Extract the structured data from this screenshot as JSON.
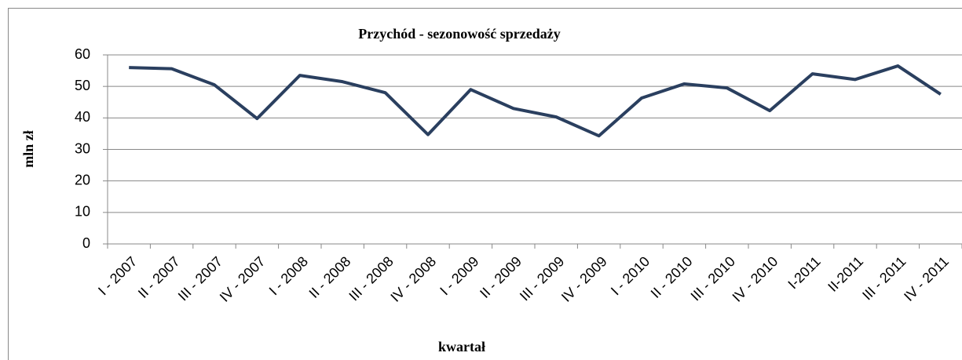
{
  "chart_data": {
    "type": "line",
    "title": "Przychód - sezonowość sprzedaży",
    "x_label": "kwartał",
    "y_label": "mln zł",
    "categories": [
      "I - 2007",
      "II - 2007",
      "III - 2007",
      "IV - 2007",
      "I - 2008",
      "II - 2008",
      "III - 2008",
      "IV - 2008",
      "I - 2009",
      "II - 2009",
      "III - 2009",
      "IV - 2009",
      "I - 2010",
      "II - 2010",
      "III - 2010",
      "IV - 2010",
      "I-2011",
      "II-2011",
      "III - 2011",
      "IV - 2011"
    ],
    "series": [
      {
        "color": "#2a3f5f",
        "values": [
          56,
          55.6,
          50.5,
          39.8,
          53.5,
          51.5,
          48,
          34.7,
          49,
          43,
          40.3,
          34.3,
          46.3,
          50.8,
          49.5,
          42.3,
          54,
          52.2,
          56.5,
          47.5
        ]
      }
    ],
    "ylim": [
      0,
      60
    ],
    "yticks": [
      0,
      10,
      20,
      30,
      40,
      50,
      60
    ],
    "grid": true
  }
}
